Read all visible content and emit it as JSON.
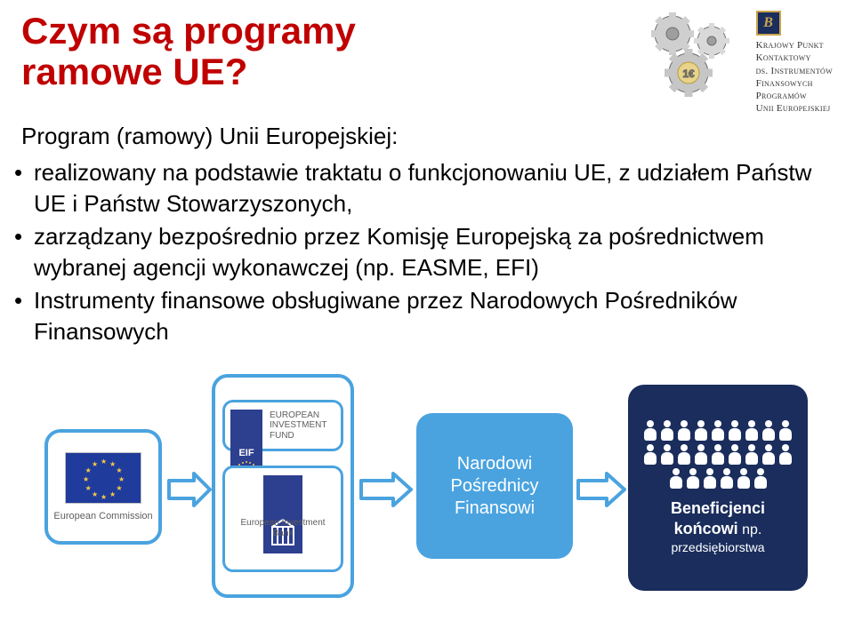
{
  "title_line1": "Czym są programy",
  "title_line2": "ramowe UE?",
  "title_color": "#c00000",
  "kpk": {
    "badge": "B",
    "l1": "Krajowy Punkt",
    "l2": "Kontaktowy",
    "l3": "ds. Instrumentów",
    "l4": "Finansowych",
    "l5": "Programów",
    "l6": "Unii Europejskiej"
  },
  "subheading": "Program (ramowy) Unii Europejskiej:",
  "bullets": [
    "realizowany na podstawie traktatu o funkcjonowaniu UE, z udziałem Państw UE i Państw Stowarzyszonych,",
    "zarządzany bezpośrednio przez Komisję Europejską za pośrednictwem wybranej agencji wykonawczej (np. EASME, EFI)",
    "Instrumenty finansowe obsługiwane przez Narodowych Pośredników Finansowych"
  ],
  "flow": {
    "ec_label": "European Commission",
    "eif_initials": "EIF",
    "eif_label": "EUROPEAN INVESTMENT FUND",
    "eib_label": "European Investment Bank",
    "npf_l1": "Narodowi",
    "npf_l2": "Pośrednicy",
    "npf_l3": "Finansowi",
    "benef_bold": "Beneficjenci końcowi",
    "benef_suffix": " np.",
    "benef_small": "przedsiębiorstwa",
    "colors": {
      "light_blue": "#4aa3df",
      "dark_blue": "#1a2d5c",
      "eu_flag": "#1f3b9b",
      "star": "#f7c948"
    },
    "people_count": 24
  }
}
